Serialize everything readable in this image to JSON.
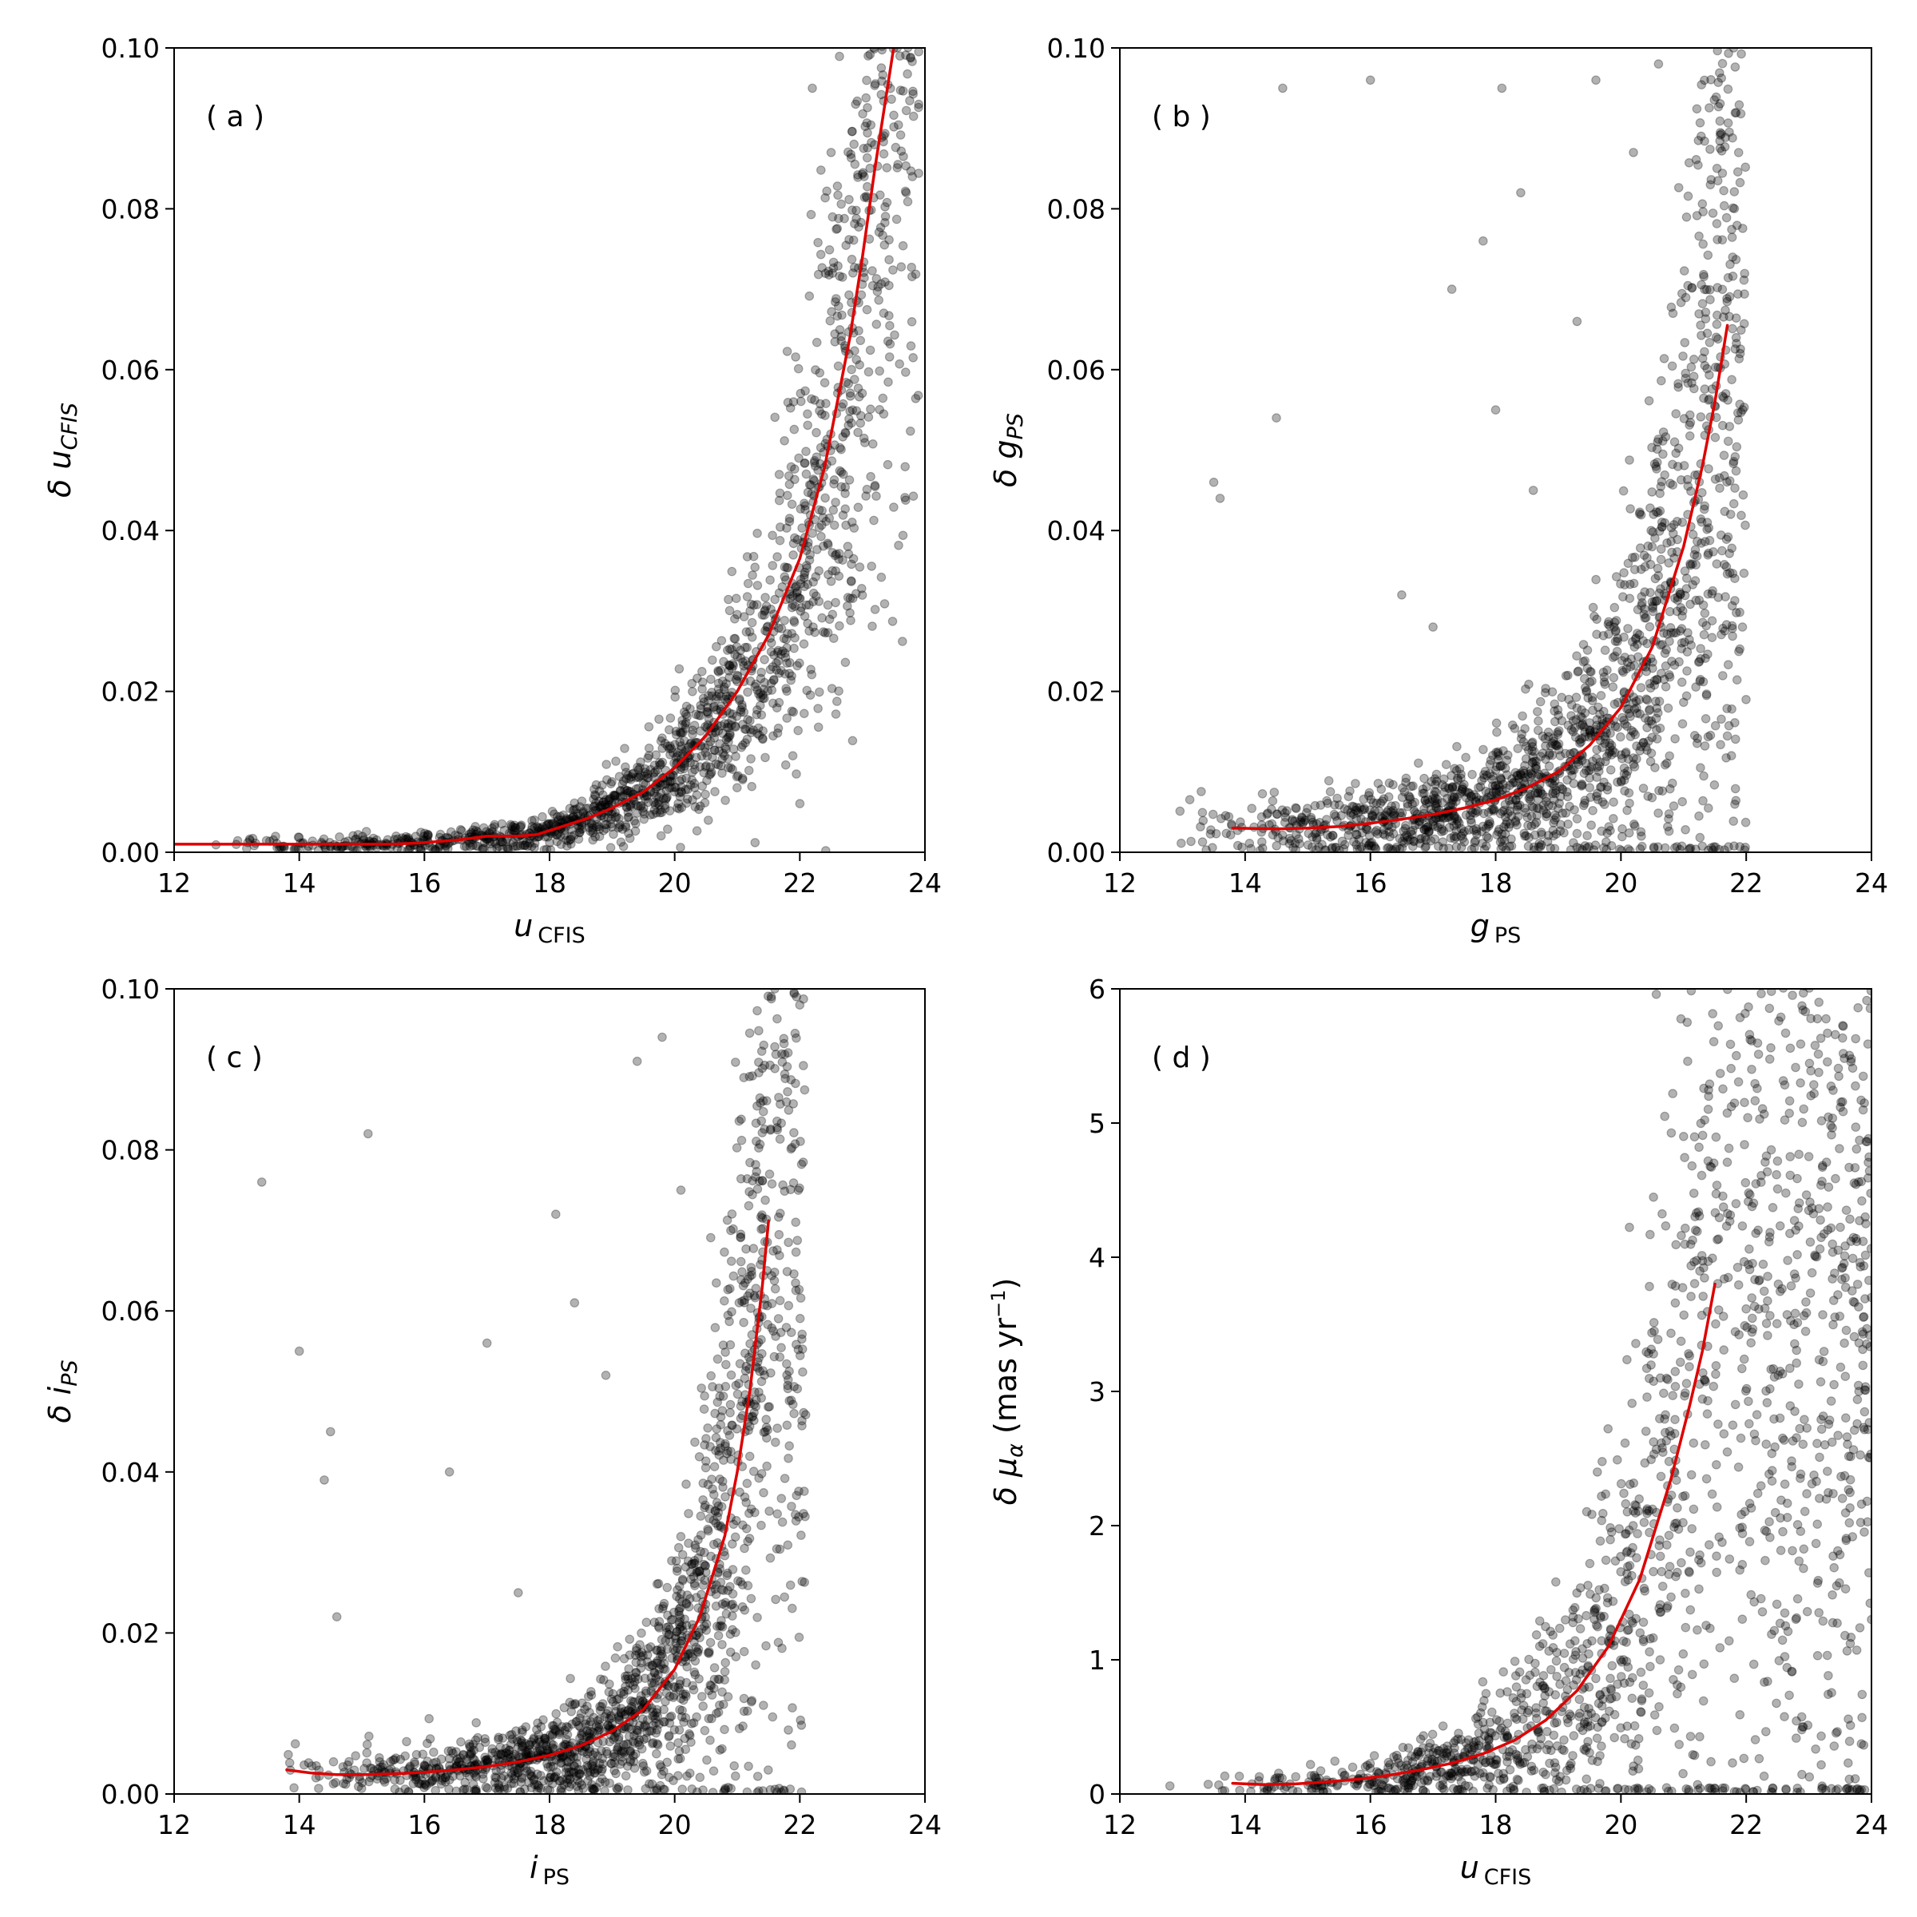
{
  "chart_data": [
    {
      "type": "scatter",
      "panel_label": "( a )",
      "xlabel": {
        "main": "u",
        "sub": "CFIS"
      },
      "ylabel": {
        "prefix": "δ ",
        "main": "u",
        "sub": "CFIS",
        "suffix": ""
      },
      "xlim": [
        12,
        24
      ],
      "ylim": [
        0,
        0.1
      ],
      "xticks": [
        "12",
        "14",
        "16",
        "18",
        "20",
        "22",
        "24"
      ],
      "yticks": [
        "0.00",
        "0.02",
        "0.04",
        "0.06",
        "0.08",
        "0.10"
      ],
      "series": [
        {
          "kind": "fit",
          "color": "#dd0000",
          "x": [
            12.0,
            13.0,
            14.0,
            15.0,
            15.5,
            16.0,
            16.5,
            17.0,
            17.5,
            17.8,
            18.2,
            18.6,
            19.0,
            19.5,
            20.0,
            20.5,
            21.0,
            21.5,
            22.0,
            22.4,
            22.8,
            23.0,
            23.2,
            23.5
          ],
          "y": [
            0.001,
            0.001,
            0.001,
            0.001,
            0.001,
            0.0012,
            0.0015,
            0.002,
            0.002,
            0.0022,
            0.0032,
            0.0042,
            0.0055,
            0.0075,
            0.0105,
            0.0145,
            0.02,
            0.027,
            0.0365,
            0.048,
            0.064,
            0.074,
            0.085,
            0.1
          ]
        },
        {
          "kind": "scatter-cloud",
          "color": "#000000",
          "x_range": [
            12.6,
            23.9
          ],
          "y_scatter_fraction": 0.32,
          "outliers": [
            [
              23.9,
              0.093
            ],
            [
              23.8,
              0.084
            ],
            [
              23.7,
              0.082
            ],
            [
              22.2,
              0.095
            ],
            [
              21.9,
              0.056
            ],
            [
              22.5,
              0.087
            ],
            [
              23.6,
              0.099
            ]
          ]
        }
      ]
    },
    {
      "type": "scatter",
      "panel_label": "( b )",
      "xlabel": {
        "main": "g",
        "sub": "PS"
      },
      "ylabel": {
        "prefix": "δ ",
        "main": "g",
        "sub": "PS",
        "suffix": ""
      },
      "xlim": [
        12,
        24
      ],
      "ylim": [
        0,
        0.1
      ],
      "xticks": [
        "12",
        "14",
        "16",
        "18",
        "20",
        "22",
        "24"
      ],
      "yticks": [
        "0.00",
        "0.02",
        "0.04",
        "0.06",
        "0.08",
        "0.10"
      ],
      "series": [
        {
          "kind": "fit",
          "color": "#dd0000",
          "x": [
            13.8,
            14.5,
            15.0,
            15.5,
            16.0,
            16.5,
            17.0,
            17.5,
            18.0,
            18.5,
            19.0,
            19.5,
            20.0,
            20.5,
            21.0,
            21.3,
            21.5,
            21.7
          ],
          "y": [
            0.003,
            0.0029,
            0.003,
            0.0032,
            0.0036,
            0.0041,
            0.0047,
            0.0055,
            0.0065,
            0.008,
            0.01,
            0.0133,
            0.018,
            0.0255,
            0.038,
            0.048,
            0.056,
            0.0655
          ]
        },
        {
          "kind": "scatter-cloud",
          "color": "#000000",
          "x_range": [
            12.5,
            22.0
          ],
          "y_scatter_fraction": 0.55,
          "outliers": [
            [
              14.6,
              0.095
            ],
            [
              16.0,
              0.096
            ],
            [
              18.1,
              0.095
            ],
            [
              13.5,
              0.046
            ],
            [
              13.6,
              0.044
            ],
            [
              14.5,
              0.054
            ],
            [
              16.5,
              0.032
            ],
            [
              17.3,
              0.07
            ],
            [
              17.8,
              0.076
            ],
            [
              18.0,
              0.055
            ],
            [
              18.4,
              0.082
            ],
            [
              19.6,
              0.096
            ],
            [
              21.8,
              0.1
            ],
            [
              20.6,
              0.098
            ],
            [
              20.2,
              0.087
            ],
            [
              17.0,
              0.028
            ],
            [
              18.6,
              0.045
            ],
            [
              19.3,
              0.066
            ]
          ]
        }
      ]
    },
    {
      "type": "scatter",
      "panel_label": "( c )",
      "xlabel": {
        "main": "i",
        "sub": "PS"
      },
      "ylabel": {
        "prefix": "δ ",
        "main": "i",
        "sub": "PS",
        "suffix": ""
      },
      "xlim": [
        12,
        24
      ],
      "ylim": [
        0,
        0.1
      ],
      "xticks": [
        "12",
        "14",
        "16",
        "18",
        "20",
        "22",
        "24"
      ],
      "yticks": [
        "0.00",
        "0.02",
        "0.04",
        "0.06",
        "0.08",
        "0.10"
      ],
      "series": [
        {
          "kind": "fit",
          "color": "#dd0000",
          "x": [
            13.8,
            14.2,
            14.6,
            15.0,
            15.5,
            16.0,
            16.5,
            17.0,
            17.5,
            18.0,
            18.5,
            19.0,
            19.5,
            20.0,
            20.4,
            20.8,
            21.0,
            21.2,
            21.4,
            21.5
          ],
          "y": [
            0.003,
            0.0026,
            0.0024,
            0.0024,
            0.0025,
            0.0027,
            0.003,
            0.0034,
            0.004,
            0.0048,
            0.006,
            0.0078,
            0.0105,
            0.0155,
            0.022,
            0.032,
            0.04,
            0.05,
            0.063,
            0.0712
          ]
        },
        {
          "kind": "scatter-cloud",
          "color": "#000000",
          "x_range": [
            13.4,
            22.1
          ],
          "y_scatter_fraction": 0.5,
          "outliers": [
            [
              13.4,
              0.076
            ],
            [
              15.1,
              0.082
            ],
            [
              14.0,
              0.055
            ],
            [
              14.5,
              0.045
            ],
            [
              14.4,
              0.039
            ],
            [
              14.6,
              0.022
            ],
            [
              16.4,
              0.04
            ],
            [
              17.0,
              0.056
            ],
            [
              18.1,
              0.072
            ],
            [
              18.4,
              0.061
            ],
            [
              19.4,
              0.091
            ],
            [
              22.0,
              0.098
            ],
            [
              21.6,
              0.1
            ],
            [
              19.8,
              0.094
            ],
            [
              17.5,
              0.025
            ],
            [
              18.9,
              0.052
            ],
            [
              20.1,
              0.075
            ]
          ]
        }
      ]
    },
    {
      "type": "scatter",
      "panel_label": "( d )",
      "xlabel": {
        "main": "u",
        "sub": "CFIS"
      },
      "ylabel": {
        "prefix": "δ ",
        "main": "μ",
        "sub": "α",
        "suffix": " (mas yr",
        "sup": "−1",
        "close": ")"
      },
      "xlim": [
        12,
        24
      ],
      "ylim": [
        0,
        6
      ],
      "xticks": [
        "12",
        "14",
        "16",
        "18",
        "20",
        "22",
        "24"
      ],
      "yticks": [
        "0",
        "1",
        "2",
        "3",
        "4",
        "5",
        "6"
      ],
      "series": [
        {
          "kind": "fit",
          "color": "#dd0000",
          "x": [
            13.8,
            14.3,
            14.8,
            15.3,
            15.8,
            16.3,
            16.8,
            17.3,
            17.8,
            18.3,
            18.8,
            19.3,
            19.8,
            20.3,
            20.8,
            21.1,
            21.3,
            21.5
          ],
          "y": [
            0.08,
            0.07,
            0.075,
            0.09,
            0.11,
            0.14,
            0.18,
            0.23,
            0.3,
            0.4,
            0.55,
            0.77,
            1.1,
            1.6,
            2.35,
            2.9,
            3.3,
            3.8
          ]
        },
        {
          "kind": "scatter-cloud",
          "color": "#000000",
          "x_range": [
            12.8,
            24.0
          ],
          "y_scatter_fraction": 0.6,
          "outliers": [
            [
              21.4,
              5.2
            ],
            [
              20.7,
              5.05
            ],
            [
              21.0,
              4.9
            ],
            [
              22.4,
              4.8
            ],
            [
              23.0,
              4.75
            ],
            [
              23.6,
              4.35
            ],
            [
              23.9,
              4.3
            ],
            [
              12.8,
              0.06
            ],
            [
              24.0,
              3.7
            ],
            [
              23.8,
              3.0
            ],
            [
              22.9,
              0.5
            ],
            [
              24.0,
              1.3
            ]
          ]
        }
      ]
    }
  ]
}
